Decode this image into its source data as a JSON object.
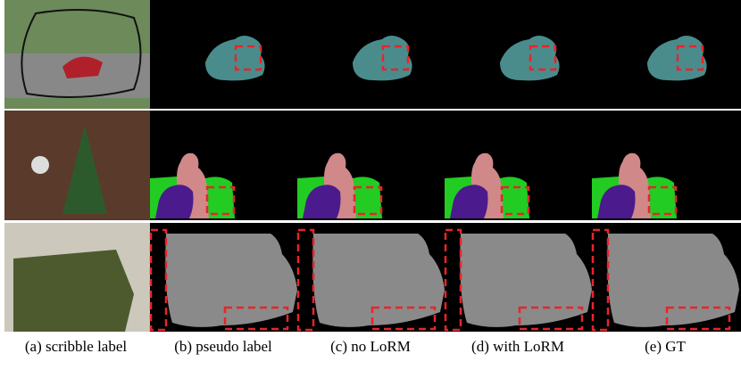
{
  "captions": [
    "(a) scribble label",
    "(b) pseudo label",
    "(c) no LoRM",
    "(d) with LoRM",
    "(e) GT"
  ]
}
